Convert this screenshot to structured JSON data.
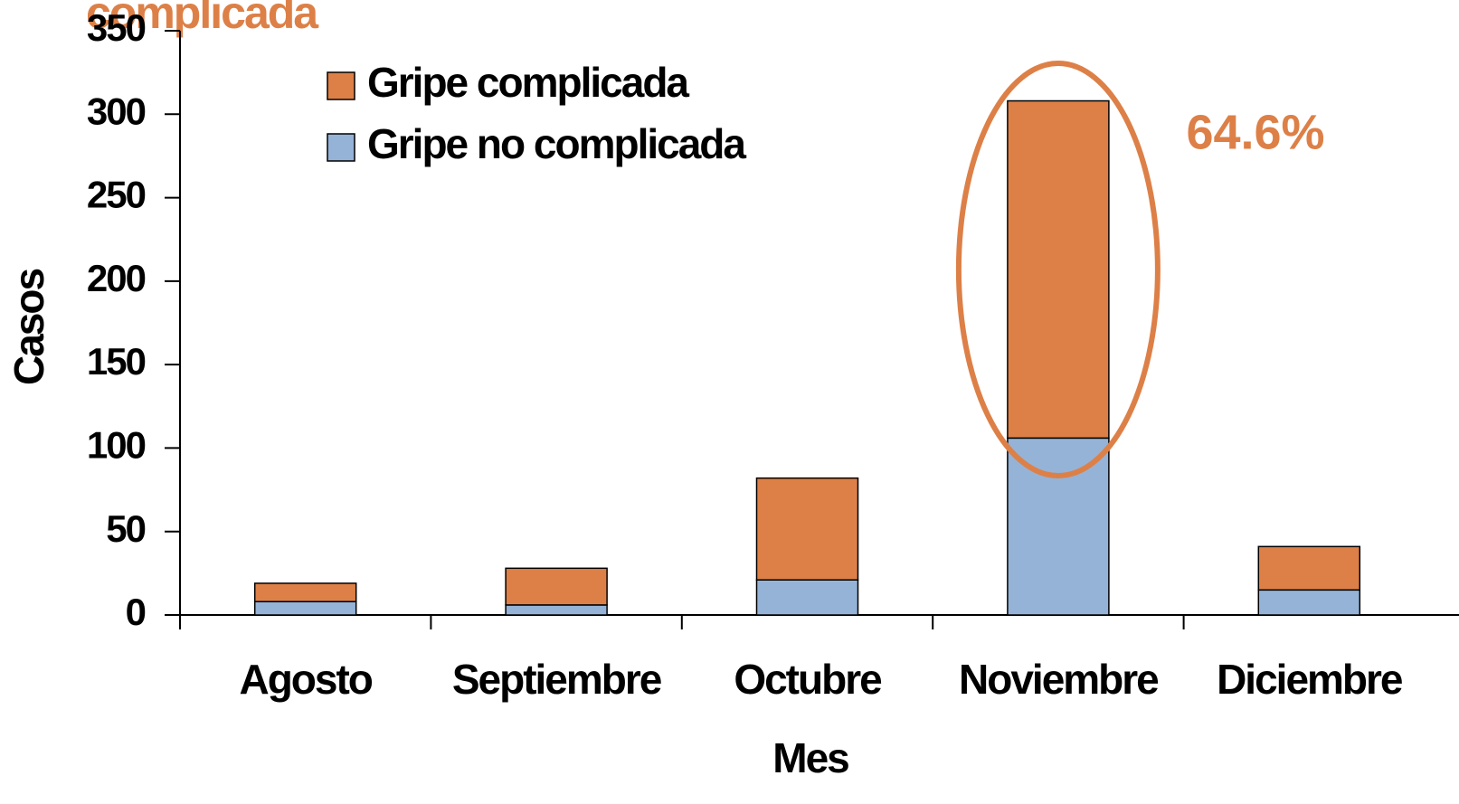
{
  "chart_data": {
    "type": "stacked_bar",
    "title": "complicada",
    "annotation": "64.6%",
    "x_label": "Mes",
    "y_label": "Casos",
    "categories": [
      "Agosto",
      "Septiembre",
      "Octubre",
      "Noviembre",
      "Diciembre"
    ],
    "series": [
      {
        "name": "Gripe no complicada",
        "color": "#95b3d7",
        "values": [
          8,
          6,
          21,
          106,
          15
        ]
      },
      {
        "name": "Gripe complicada",
        "color": "#dd8047",
        "values": [
          11,
          22,
          61,
          202,
          26
        ]
      }
    ],
    "ylim": [
      0,
      350
    ],
    "yticks": [
      0,
      50,
      100,
      150,
      200,
      250,
      300,
      350
    ],
    "legend": "upper left"
  }
}
